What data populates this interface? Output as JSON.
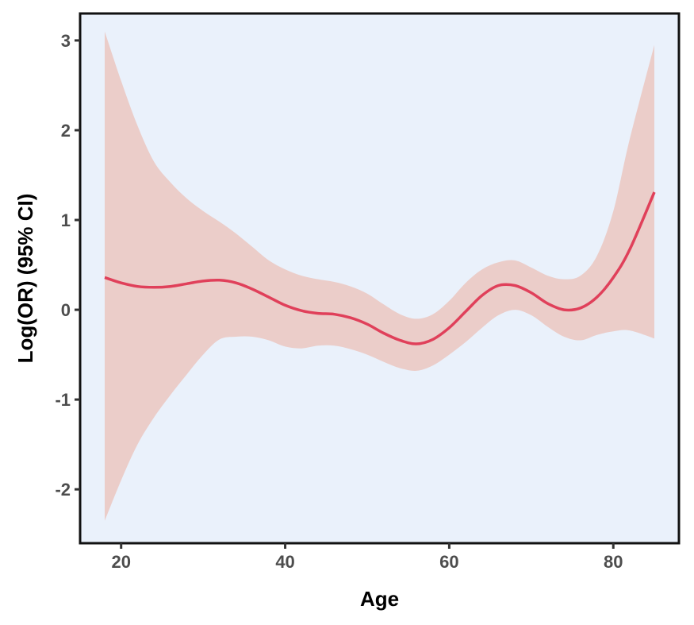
{
  "chart_data": {
    "type": "area",
    "title": "",
    "xlabel": "Age",
    "ylabel": "Log(OR) (95% CI)",
    "xlim": [
      15,
      88
    ],
    "ylim": [
      -2.6,
      3.3
    ],
    "xticks": [
      20,
      40,
      60,
      80
    ],
    "yticks": [
      3,
      2,
      1,
      0,
      -1,
      -2
    ],
    "grid": false,
    "legend": "none",
    "colors": {
      "panel_background": "#eaf1fb",
      "ci_fill": "#ebcdc9",
      "line": "#e0405a",
      "frame": "#111111"
    },
    "x": [
      18,
      20,
      22,
      24,
      26,
      28,
      30,
      32,
      34,
      36,
      38,
      40,
      42,
      44,
      46,
      48,
      50,
      52,
      54,
      56,
      58,
      60,
      62,
      64,
      66,
      68,
      70,
      72,
      74,
      76,
      78,
      80,
      82,
      85
    ],
    "series": [
      {
        "role": "estimate",
        "values": [
          0.36,
          0.3,
          0.26,
          0.25,
          0.26,
          0.29,
          0.32,
          0.33,
          0.3,
          0.23,
          0.14,
          0.05,
          -0.01,
          -0.04,
          -0.05,
          -0.09,
          -0.16,
          -0.26,
          -0.34,
          -0.38,
          -0.33,
          -0.2,
          -0.02,
          0.16,
          0.27,
          0.27,
          0.19,
          0.07,
          0.0,
          0.02,
          0.14,
          0.36,
          0.67,
          1.31
        ]
      },
      {
        "role": "upper",
        "values": [
          3.1,
          2.55,
          2.05,
          1.65,
          1.42,
          1.24,
          1.1,
          0.98,
          0.85,
          0.7,
          0.55,
          0.45,
          0.38,
          0.34,
          0.31,
          0.26,
          0.18,
          0.06,
          -0.05,
          -0.1,
          -0.05,
          0.1,
          0.3,
          0.45,
          0.53,
          0.55,
          0.47,
          0.38,
          0.34,
          0.38,
          0.6,
          1.1,
          1.9,
          2.95
        ]
      },
      {
        "role": "lower",
        "values": [
          -2.35,
          -1.9,
          -1.5,
          -1.2,
          -0.95,
          -0.72,
          -0.5,
          -0.33,
          -0.3,
          -0.3,
          -0.34,
          -0.41,
          -0.43,
          -0.4,
          -0.4,
          -0.44,
          -0.5,
          -0.58,
          -0.65,
          -0.68,
          -0.62,
          -0.5,
          -0.36,
          -0.2,
          -0.06,
          0.0,
          -0.06,
          -0.19,
          -0.3,
          -0.34,
          -0.28,
          -0.24,
          -0.23,
          -0.32
        ]
      }
    ]
  }
}
